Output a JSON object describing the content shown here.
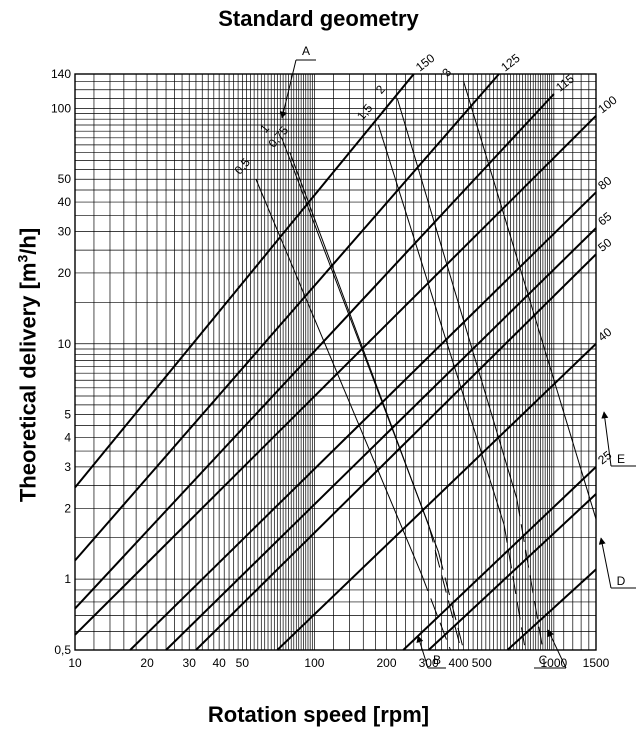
{
  "chart_data": {
    "type": "line",
    "title": "Standard geometry",
    "xlabel": "Rotation speed [rpm]",
    "ylabel": {
      "main": "Theoretical delivery [m",
      "unit_superscript": "3",
      "suffix": "/h]"
    },
    "x_scale": "log",
    "y_scale": "log",
    "xlim": [
      10,
      1500
    ],
    "ylim": [
      0.5,
      140
    ],
    "grid": true,
    "x_ticks": [
      {
        "value": 10,
        "label": "10"
      },
      {
        "value": 20,
        "label": "20"
      },
      {
        "value": 30,
        "label": "30"
      },
      {
        "value": 40,
        "label": "40"
      },
      {
        "value": 50,
        "label": "50"
      },
      {
        "value": 100,
        "label": "100"
      },
      {
        "value": 200,
        "label": "200"
      },
      {
        "value": 300,
        "label": "300"
      },
      {
        "value": 400,
        "label": "400"
      },
      {
        "value": 500,
        "label": "500"
      },
      {
        "value": 1000,
        "label": "1000"
      },
      {
        "value": 1500,
        "label": "1500"
      }
    ],
    "y_ticks": [
      {
        "value": 0.5,
        "label": "0,5"
      },
      {
        "value": 1,
        "label": "1"
      },
      {
        "value": 2,
        "label": "2"
      },
      {
        "value": 3,
        "label": "3"
      },
      {
        "value": 4,
        "label": "4"
      },
      {
        "value": 5,
        "label": "5"
      },
      {
        "value": 10,
        "label": "10"
      },
      {
        "value": 20,
        "label": "20"
      },
      {
        "value": 30,
        "label": "30"
      },
      {
        "value": 40,
        "label": "40"
      },
      {
        "value": 50,
        "label": "50"
      },
      {
        "value": 100,
        "label": "100"
      },
      {
        "value": 140,
        "label": "140"
      }
    ],
    "series": [
      {
        "name": "150",
        "points": [
          [
            10,
            2.45
          ],
          [
            260,
            140
          ]
        ]
      },
      {
        "name": "125",
        "points": [
          [
            10,
            1.2
          ],
          [
            590,
            140
          ]
        ]
      },
      {
        "name": "115",
        "points": [
          [
            10,
            0.75
          ],
          [
            1000,
            115
          ]
        ]
      },
      {
        "name": "100",
        "points": [
          [
            10,
            0.58
          ],
          [
            1500,
            93
          ]
        ]
      },
      {
        "name": "80",
        "points": [
          [
            17,
            0.5
          ],
          [
            1500,
            44
          ]
        ]
      },
      {
        "name": "65",
        "points": [
          [
            24,
            0.5
          ],
          [
            1500,
            31
          ]
        ]
      },
      {
        "name": "50",
        "points": [
          [
            32,
            0.5
          ],
          [
            1500,
            24
          ]
        ]
      },
      {
        "name": "40",
        "points": [
          [
            70,
            0.5
          ],
          [
            1500,
            10
          ]
        ]
      },
      {
        "name": "25",
        "points": [
          [
            235,
            0.5
          ],
          [
            1500,
            3
          ]
        ]
      },
      {
        "points": [
          [
            300,
            0.5
          ],
          [
            1500,
            2.3
          ]
        ]
      },
      {
        "points": [
          [
            640,
            0.5
          ],
          [
            1500,
            1.1
          ]
        ]
      }
    ],
    "speed_limit_lines": [
      {
        "name": "0,5",
        "solid": [
          [
            57,
            50
          ],
          [
            280,
            1.05
          ]
        ],
        "dashed": [
          [
            280,
            1.05
          ],
          [
            370,
            0.5
          ]
        ]
      },
      {
        "name": "0,75",
        "solid": [
          [
            79,
            65
          ],
          [
            330,
            1.3
          ]
        ],
        "dashed": [
          [
            330,
            1.3
          ],
          [
            420,
            0.5
          ]
        ]
      },
      {
        "name": "1",
        "solid": [
          [
            73,
            75
          ],
          [
            300,
            1.7
          ]
        ],
        "dashed": [
          [
            300,
            1.7
          ],
          [
            410,
            0.5
          ]
        ]
      },
      {
        "name": "1,5",
        "solid": [
          [
            185,
            85
          ],
          [
            620,
            1.7
          ]
        ],
        "dashed": [
          [
            620,
            1.7
          ],
          [
            760,
            0.5
          ]
        ]
      },
      {
        "name": "2",
        "solid": [
          [
            222,
            110
          ],
          [
            700,
            2.2
          ]
        ],
        "dashed": [
          [
            700,
            2.2
          ],
          [
            900,
            0.5
          ]
        ]
      },
      {
        "name": "3",
        "solid": [
          [
            420,
            130
          ],
          [
            1500,
            1.8
          ]
        ],
        "dashed": []
      }
    ],
    "callouts": [
      "A",
      "B",
      "C",
      "D",
      "E"
    ]
  }
}
